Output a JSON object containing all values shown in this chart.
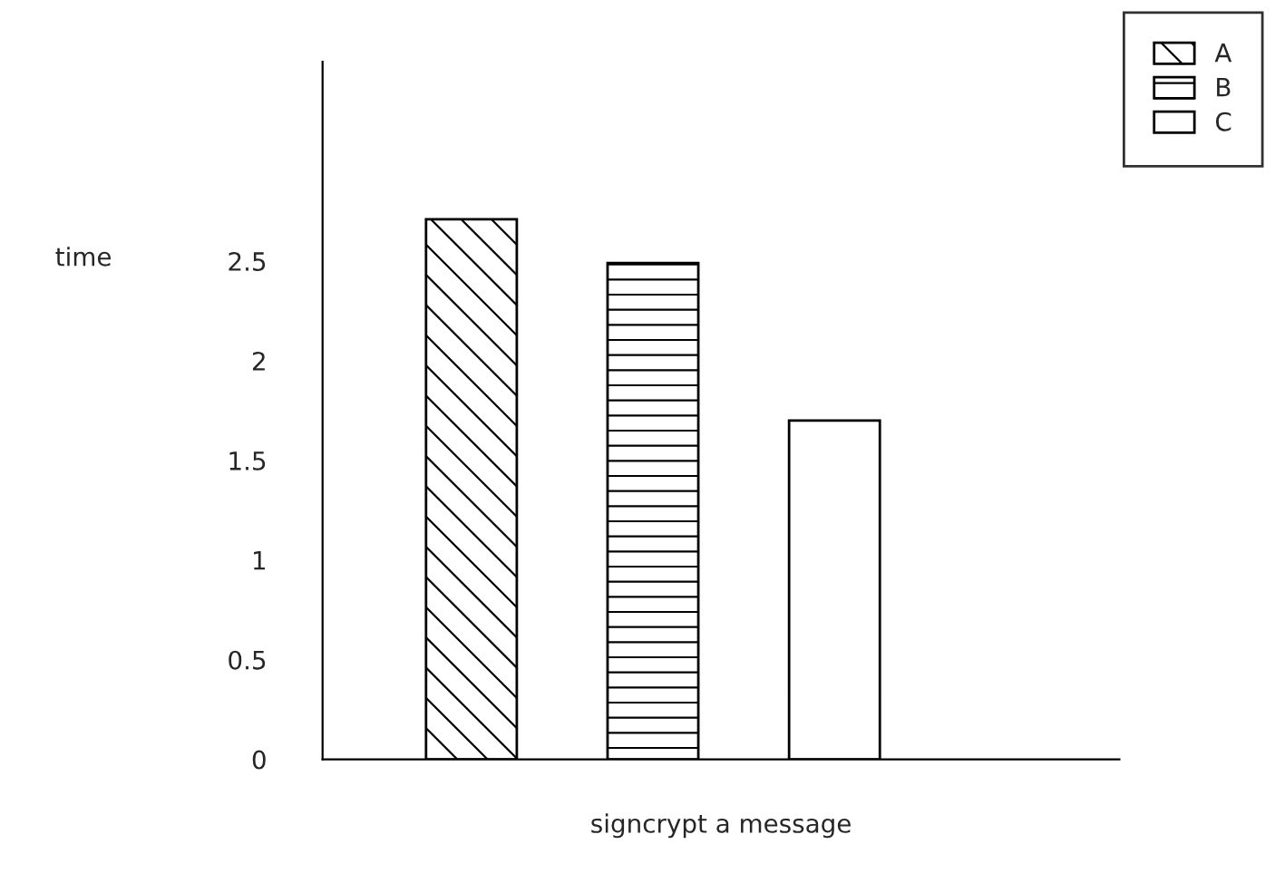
{
  "chart_data": {
    "type": "bar",
    "categories": [
      null
    ],
    "xlabel": "signcrypt a message",
    "ylabel": "time",
    "ylim": [
      0,
      3.5
    ],
    "yticks": [
      0,
      0.5,
      1,
      1.5,
      2,
      2.5
    ],
    "grid": false,
    "legend": "top right",
    "series": [
      {
        "name": "A",
        "color": "#ffffff",
        "values": [
          2.71
        ]
      },
      {
        "name": "B",
        "color": "#ffffff",
        "values": [
          2.49
        ]
      },
      {
        "name": "C",
        "color": "#ffffff",
        "values": [
          1.7
        ]
      }
    ]
  }
}
